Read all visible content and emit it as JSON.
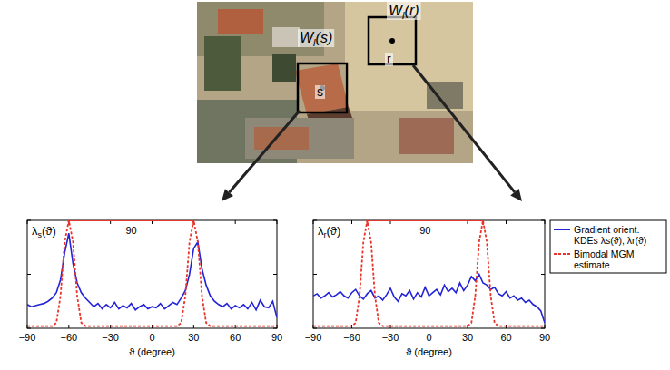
{
  "image": {
    "windows": [
      {
        "label": "Wl(s)",
        "point": "s"
      },
      {
        "label": "Wl(r)",
        "point": "r"
      }
    ]
  },
  "chart_data": [
    {
      "type": "line",
      "y_label": "λs(ϑ)",
      "x_label": "ϑ (degree)",
      "x": [
        -90,
        -87,
        -84,
        -81,
        -78,
        -75,
        -72,
        -69,
        -66,
        -63,
        -60,
        -57,
        -54,
        -51,
        -48,
        -45,
        -42,
        -39,
        -36,
        -33,
        -30,
        -27,
        -24,
        -21,
        -18,
        -15,
        -12,
        -9,
        -6,
        -3,
        0,
        3,
        6,
        9,
        12,
        15,
        18,
        21,
        24,
        27,
        30,
        33,
        36,
        39,
        42,
        45,
        48,
        51,
        54,
        57,
        60,
        63,
        66,
        69,
        72,
        75,
        78,
        81,
        84,
        87,
        90
      ],
      "xlim": [
        -90,
        90
      ],
      "xticks": [
        -90,
        -60,
        -30,
        0,
        30,
        60,
        90
      ],
      "ylim": [
        0,
        1
      ],
      "yticks": [
        0,
        0.5,
        1
      ],
      "tick_labels": "x",
      "series": [
        {
          "color": "#2323d8",
          "line_style": "solid",
          "values": [
            0.22,
            0.2,
            0.21,
            0.22,
            0.23,
            0.25,
            0.28,
            0.33,
            0.45,
            0.7,
            0.88,
            0.6,
            0.42,
            0.33,
            0.28,
            0.24,
            0.2,
            0.23,
            0.18,
            0.22,
            0.19,
            0.24,
            0.18,
            0.21,
            0.19,
            0.23,
            0.17,
            0.2,
            0.22,
            0.18,
            0.2,
            0.19,
            0.23,
            0.18,
            0.21,
            0.24,
            0.22,
            0.28,
            0.35,
            0.5,
            0.74,
            0.8,
            0.55,
            0.4,
            0.3,
            0.25,
            0.22,
            0.2,
            0.23,
            0.18,
            0.21,
            0.19,
            0.22,
            0.18,
            0.24,
            0.17,
            0.26,
            0.2,
            0.19,
            0.25,
            0.1
          ]
        },
        {
          "color": "#e8352b",
          "line_style": "dashed",
          "values": [
            0.02,
            0.02,
            0.02,
            0.02,
            0.02,
            0.02,
            0.02,
            0.05,
            0.3,
            0.8,
            1.0,
            0.8,
            0.3,
            0.05,
            0.02,
            0.02,
            0.02,
            0.02,
            0.02,
            0.02,
            0.02,
            0.02,
            0.02,
            0.02,
            0.02,
            0.02,
            0.02,
            0.02,
            0.02,
            0.02,
            0.02,
            0.02,
            0.02,
            0.02,
            0.02,
            0.02,
            0.02,
            0.05,
            0.3,
            0.8,
            1.0,
            0.8,
            0.3,
            0.05,
            0.02,
            0.02,
            0.02,
            0.02,
            0.02,
            0.02,
            0.02,
            0.02,
            0.02,
            0.02,
            0.02,
            0.02,
            0.02,
            0.02,
            0.02,
            0.02,
            0.02
          ]
        }
      ],
      "annotations": [
        {
          "text": "90",
          "x1": -60,
          "x2": 30,
          "y": 1,
          "color": "#e8352b"
        }
      ]
    },
    {
      "type": "line",
      "y_label": "λr(ϑ)",
      "x_label": "ϑ (degree)",
      "x": [
        -90,
        -87,
        -84,
        -81,
        -78,
        -75,
        -72,
        -69,
        -66,
        -63,
        -60,
        -57,
        -54,
        -51,
        -48,
        -45,
        -42,
        -39,
        -36,
        -33,
        -30,
        -27,
        -24,
        -21,
        -18,
        -15,
        -12,
        -9,
        -6,
        -3,
        0,
        3,
        6,
        9,
        12,
        15,
        18,
        21,
        24,
        27,
        30,
        33,
        36,
        39,
        42,
        45,
        48,
        51,
        54,
        57,
        60,
        63,
        66,
        69,
        72,
        75,
        78,
        81,
        84,
        87,
        90
      ],
      "xlim": [
        -90,
        90
      ],
      "xticks": [
        -90,
        -60,
        -30,
        0,
        30,
        60,
        90
      ],
      "ylim": [
        0,
        1
      ],
      "yticks": [
        0,
        0.5,
        1
      ],
      "tick_labels": "x",
      "legend": "right",
      "series": [
        {
          "name": "Gradient orient. KDEs λs(ϑ), λr(ϑ)",
          "color": "#2323d8",
          "line_style": "solid",
          "values": [
            0.3,
            0.32,
            0.28,
            0.3,
            0.33,
            0.29,
            0.31,
            0.34,
            0.3,
            0.28,
            0.33,
            0.36,
            0.3,
            0.27,
            0.32,
            0.35,
            0.28,
            0.3,
            0.26,
            0.31,
            0.37,
            0.29,
            0.25,
            0.32,
            0.3,
            0.35,
            0.27,
            0.33,
            0.29,
            0.38,
            0.3,
            0.33,
            0.36,
            0.31,
            0.4,
            0.34,
            0.37,
            0.33,
            0.42,
            0.35,
            0.4,
            0.48,
            0.44,
            0.5,
            0.42,
            0.4,
            0.36,
            0.38,
            0.32,
            0.3,
            0.34,
            0.28,
            0.3,
            0.26,
            0.28,
            0.24,
            0.26,
            0.22,
            0.2,
            0.16,
            0.05
          ]
        },
        {
          "name": "Bimodal MGM estimate",
          "color": "#e8352b",
          "line_style": "dashed",
          "values": [
            0.02,
            0.02,
            0.02,
            0.02,
            0.02,
            0.02,
            0.02,
            0.02,
            0.02,
            0.02,
            0.02,
            0.05,
            0.3,
            0.8,
            1.0,
            0.8,
            0.3,
            0.05,
            0.02,
            0.02,
            0.02,
            0.02,
            0.02,
            0.02,
            0.02,
            0.02,
            0.02,
            0.02,
            0.02,
            0.02,
            0.02,
            0.02,
            0.02,
            0.02,
            0.02,
            0.02,
            0.02,
            0.02,
            0.02,
            0.02,
            0.02,
            0.05,
            0.3,
            0.8,
            1.0,
            0.8,
            0.3,
            0.05,
            0.02,
            0.02,
            0.02,
            0.02,
            0.02,
            0.02,
            0.02,
            0.02,
            0.02,
            0.02,
            0.02,
            0.02,
            0.02
          ]
        }
      ],
      "annotations": [
        {
          "text": "90",
          "x1": -48,
          "x2": 42,
          "y": 1,
          "color": "#e8352b"
        }
      ]
    }
  ]
}
